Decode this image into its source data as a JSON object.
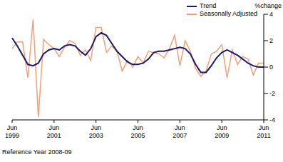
{
  "chart_data": {
    "type": "line",
    "y_label": "%change",
    "footnote": "Reference Year 2008-09",
    "categories": [
      "Jun 1999",
      null,
      null,
      null,
      null,
      null,
      null,
      null,
      "Jun 2001",
      null,
      null,
      null,
      null,
      null,
      null,
      null,
      "Jun 2003",
      null,
      null,
      null,
      null,
      null,
      null,
      null,
      "Jun 2005",
      null,
      null,
      null,
      null,
      null,
      null,
      null,
      "Jun 2007",
      null,
      null,
      null,
      null,
      null,
      null,
      null,
      "Jun 2009",
      null,
      null,
      null,
      null,
      null,
      null,
      null,
      "Jun 2011"
    ],
    "series": [
      {
        "name": "Trend",
        "color": "#1b1a6b",
        "values": [
          2.2,
          1.6,
          0.9,
          0.2,
          0.1,
          0.3,
          1.0,
          1.3,
          1.4,
          1.3,
          1.6,
          1.7,
          1.6,
          1.2,
          0.9,
          1.4,
          2.3,
          2.6,
          2.4,
          1.8,
          1.2,
          0.8,
          0.4,
          0.2,
          0.2,
          0.3,
          0.6,
          1.1,
          1.2,
          1.2,
          1.3,
          1.4,
          1.5,
          1.4,
          1.0,
          0.2,
          -0.4,
          -0.4,
          0.1,
          0.7,
          1.1,
          1.3,
          1.1,
          0.9,
          0.6,
          0.3,
          0.1,
          0.0,
          0.0
        ]
      },
      {
        "name": "Seasonally Adjusted",
        "color": "#f2a07a",
        "values": [
          1.4,
          1.9,
          1.9,
          -0.8,
          3.6,
          -3.8,
          2.1,
          1.7,
          1.4,
          0.8,
          1.5,
          2.0,
          1.8,
          0.9,
          1.3,
          0.5,
          3.0,
          3.0,
          1.1,
          1.6,
          1.2,
          -0.3,
          0.5,
          0.0,
          0.8,
          0.3,
          1.2,
          1.1,
          1.0,
          0.7,
          1.4,
          2.4,
          0.1,
          2.0,
          1.2,
          -0.1,
          -0.7,
          -0.3,
          1.0,
          1.2,
          1.7,
          -0.8,
          1.3,
          0.2,
          0.8,
          0.6,
          -0.6,
          0.3,
          0.3
        ]
      }
    ],
    "ylim": [
      -4,
      4
    ],
    "yticks": [
      -4,
      -2,
      0,
      2,
      4
    ],
    "grid": false,
    "legend": "top-right"
  }
}
